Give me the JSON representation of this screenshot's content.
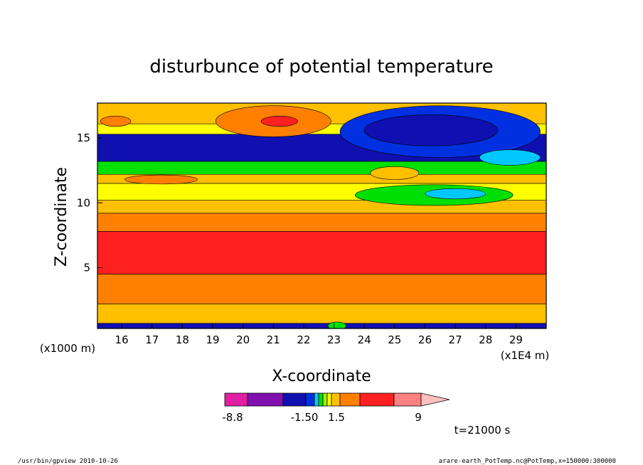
{
  "chart_data": {
    "type": "heatmap",
    "title": "disturbunce of potential temperature",
    "xlabel": "X-coordinate",
    "ylabel": "Z-coordinate",
    "x_unit_left": "(x1000 m)",
    "x_unit_right": "(x1E4 m)",
    "xlim": [
      15.2,
      30.0
    ],
    "ylim": [
      0.3,
      17.7
    ],
    "x_ticks": [
      16,
      17,
      18,
      19,
      20,
      21,
      22,
      23,
      24,
      25,
      26,
      27,
      28,
      29
    ],
    "y_ticks": [
      5,
      10,
      15
    ],
    "colorbar": {
      "tick_labels": [
        "-8.8",
        "-1.50",
        "1.5",
        "9"
      ],
      "colors": [
        "#e020a0",
        "#8010b0",
        "#1010b0",
        "#0030e0",
        "#00c8ff",
        "#00e000",
        "#a0f000",
        "#ffff00",
        "#ffc000",
        "#ff8000",
        "#ff2020",
        "#ff8080",
        "#ffc0c0"
      ]
    },
    "bands": [
      {
        "z_bottom": 0.3,
        "z_top": 0.7,
        "color": "#1010b0"
      },
      {
        "z_bottom": 0.7,
        "z_top": 2.2,
        "color": "#ffc000"
      },
      {
        "z_bottom": 2.2,
        "z_top": 4.5,
        "color": "#ff8000"
      },
      {
        "z_bottom": 4.5,
        "z_top": 7.8,
        "color": "#ff2020"
      },
      {
        "z_bottom": 7.8,
        "z_top": 9.2,
        "color": "#ff8000"
      },
      {
        "z_bottom": 9.2,
        "z_top": 10.2,
        "color": "#ffc000"
      },
      {
        "z_bottom": 10.2,
        "z_top": 11.5,
        "color": "#ffff00"
      },
      {
        "z_bottom": 11.5,
        "z_top": 12.2,
        "color": "#ffc000"
      },
      {
        "z_bottom": 12.2,
        "z_top": 13.2,
        "color": "#00e000"
      },
      {
        "z_bottom": 13.2,
        "z_top": 15.3,
        "color": "#1010b0"
      },
      {
        "z_bottom": 15.3,
        "z_top": 16.1,
        "color": "#ffff00"
      },
      {
        "z_bottom": 16.1,
        "z_top": 17.7,
        "color": "#ffc000"
      }
    ],
    "blobs": [
      {
        "x": 21.0,
        "z": 16.3,
        "rx": 1.9,
        "rz": 1.2,
        "color": "#ff8000"
      },
      {
        "x": 21.2,
        "z": 16.3,
        "rx": 0.6,
        "rz": 0.4,
        "color": "#ff2020"
      },
      {
        "x": 17.3,
        "z": 11.8,
        "rx": 1.2,
        "rz": 0.35,
        "color": "#ff8000"
      },
      {
        "x": 25.0,
        "z": 12.3,
        "rx": 0.8,
        "rz": 0.5,
        "color": "#ffc000"
      },
      {
        "x": 15.8,
        "z": 16.3,
        "rx": 0.5,
        "rz": 0.4,
        "color": "#ff8000"
      },
      {
        "x": 26.3,
        "z": 10.6,
        "rx": 2.6,
        "rz": 0.8,
        "color": "#00e000"
      },
      {
        "x": 27.0,
        "z": 10.7,
        "rx": 1.0,
        "rz": 0.4,
        "color": "#00c8ff"
      },
      {
        "x": 26.5,
        "z": 15.5,
        "rx": 3.3,
        "rz": 2.0,
        "color": "#0030e0"
      },
      {
        "x": 26.2,
        "z": 15.6,
        "rx": 2.2,
        "rz": 1.2,
        "color": "#1010b0"
      },
      {
        "x": 28.8,
        "z": 13.5,
        "rx": 1.0,
        "rz": 0.6,
        "color": "#00c8ff"
      },
      {
        "x": 23.1,
        "z": 0.5,
        "rx": 0.3,
        "rz": 0.3,
        "color": "#00e000"
      }
    ],
    "annotation": "t=21000 s"
  },
  "footer": {
    "left": "/usr/bin/gpview   2010-10-26",
    "right": "arare-earth_PotTemp.nc@PotTemp,x=150000:300000"
  }
}
